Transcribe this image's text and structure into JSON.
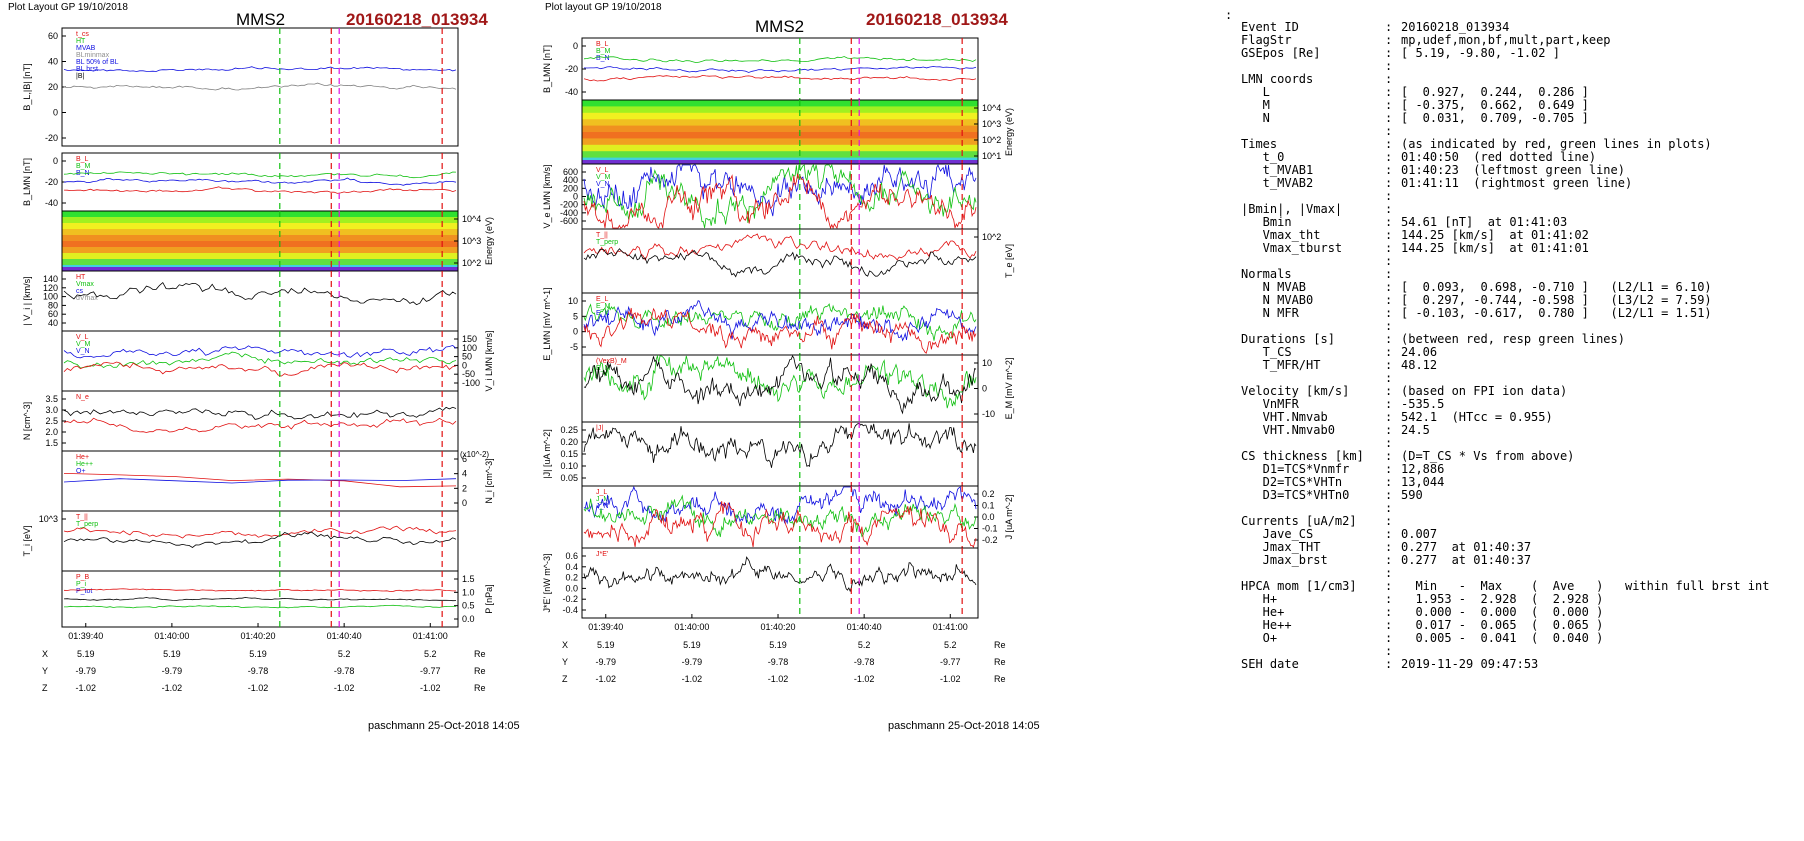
{
  "header": {
    "left_label": "Plot Layout GP 19/10/2018",
    "mid_label": "Plot layout GP 19/10/2018",
    "probe": "MMS2",
    "event": "20160218_013934"
  },
  "footer": {
    "author": "paschmann 25-Oct-2018 14:05"
  },
  "colors": {
    "event_title": "#a01818",
    "red": "#e01010",
    "green": "#10c010",
    "blue": "#1010e0",
    "magenta": "#e010e0",
    "black": "#000000"
  },
  "chart_data": [
    {
      "type": "line",
      "panel": "left",
      "time_ticks": [
        "01:39:40",
        "01:40:00",
        "01:40:20",
        "01:40:40",
        "01:41:00"
      ],
      "ephemeris": {
        "rows": [
          {
            "label": "X",
            "values": [
              "5.19",
              "5.19",
              "5.19",
              "5.2",
              "5.2"
            ],
            "unit": "Re"
          },
          {
            "label": "Y",
            "values": [
              "-9.79",
              "-9.79",
              "-9.78",
              "-9.78",
              "-9.77"
            ],
            "unit": "Re"
          },
          {
            "label": "Z",
            "values": [
              "-1.02",
              "-1.02",
              "-1.02",
              "-1.02",
              "-1.02"
            ],
            "unit": "Re"
          }
        ]
      },
      "panels": [
        {
          "id": "BL",
          "ylabel": "B_L,|B| [nT]",
          "ticks": [
            "60",
            "40",
            "20",
            "0",
            "-20"
          ],
          "legend": [
            "t_cs",
            "HT",
            "MVAB",
            "BLminmax",
            "BL 50% of BL",
            "BL brst",
            "|B|"
          ]
        },
        {
          "id": "BLMN",
          "ylabel": "B_LMN [nT]",
          "ticks": [
            "0",
            "-20",
            "-40"
          ],
          "legend": [
            "B_L",
            "B_M",
            "B_N"
          ]
        },
        {
          "id": "spec",
          "ylabel_right": "Energy (eV)",
          "ticks_right": [
            "10^4",
            "10^3",
            "10^2"
          ]
        },
        {
          "id": "Vi",
          "ylabel": "| V_i | [km/s]",
          "ticks": [
            "140",
            "120",
            "100",
            "80",
            "60",
            "40"
          ],
          "legend": [
            "HT",
            "Vmax",
            "cs",
            "dVmax"
          ]
        },
        {
          "id": "ViLMN",
          "ylabel_right": "V_i LMN [km/s]",
          "ticks_right": [
            "150",
            "100",
            "50",
            "0",
            "-50",
            "-100"
          ],
          "legend": [
            "V_L",
            "V_M",
            "V_N"
          ]
        },
        {
          "id": "N",
          "ylabel": "N [cm^-3]",
          "ticks": [
            "3.5",
            "3.0",
            "2.5",
            "2.0",
            "1.5"
          ],
          "legend": [
            "N_e"
          ]
        },
        {
          "id": "Ni",
          "ylabel_right": "N_i [cm^-3]",
          "ticks_right": [
            "6",
            "4",
            "2",
            "0"
          ],
          "legend": [
            "He+",
            "He++",
            "O+"
          ],
          "scale_note": "(x10^-2)"
        },
        {
          "id": "Ti",
          "ylabel": "T_i [eV]",
          "ticks": [
            "10^3"
          ],
          "legend": [
            "T_||",
            "T_perp"
          ]
        },
        {
          "id": "P",
          "ylabel_right": "P [nPa]",
          "ticks_right": [
            "1.5",
            "1.0",
            "0.5",
            "0.0"
          ],
          "legend": [
            "P_B",
            "P_i",
            "P_tot"
          ]
        }
      ]
    },
    {
      "type": "line",
      "panel": "middle",
      "time_ticks": [
        "01:39:40",
        "01:40:00",
        "01:40:20",
        "01:40:40",
        "01:41:00"
      ],
      "ephemeris": {
        "rows": [
          {
            "label": "X",
            "values": [
              "5.19",
              "5.19",
              "5.19",
              "5.2",
              "5.2"
            ],
            "unit": "Re"
          },
          {
            "label": "Y",
            "values": [
              "-9.79",
              "-9.79",
              "-9.78",
              "-9.78",
              "-9.77"
            ],
            "unit": "Re"
          },
          {
            "label": "Z",
            "values": [
              "-1.02",
              "-1.02",
              "-1.02",
              "-1.02",
              "-1.02"
            ],
            "unit": "Re"
          }
        ]
      },
      "panels": [
        {
          "id": "BLMN",
          "ylabel": "B_LMN [nT]",
          "ticks": [
            "0",
            "-20",
            "-40"
          ],
          "legend": [
            "B_L",
            "B_M",
            "B_N"
          ]
        },
        {
          "id": "spec",
          "ylabel_right": "Energy (eV)",
          "ticks_right": [
            "10^4",
            "10^3",
            "10^2",
            "10^1"
          ]
        },
        {
          "id": "VeLMN",
          "ylabel": "V_e LMN [km/s]",
          "ticks": [
            "600",
            "400",
            "200",
            "0",
            "-200",
            "-400",
            "-600"
          ],
          "legend": [
            "V_L",
            "V_M",
            "V_N"
          ]
        },
        {
          "id": "Te",
          "ylabel_right": "T_e [eV]",
          "ticks_right": [
            "10^2"
          ],
          "legend": [
            "T_||",
            "T_perp"
          ]
        },
        {
          "id": "ELMN",
          "ylabel": "E_LMN [mV m^-1]",
          "ticks": [
            "10",
            "5",
            "0",
            "-5"
          ],
          "legend": [
            "E_L",
            "E_M",
            "E_N"
          ]
        },
        {
          "id": "EM",
          "ylabel_right": "E_M [mV m^-2]",
          "ticks_right": [
            "10",
            "0",
            "-10"
          ],
          "legend": [
            "(VexB)_M",
            "E_M"
          ]
        },
        {
          "id": "J",
          "ylabel": "|J| [uA m^-2]",
          "ticks": [
            "0.25",
            "0.20",
            "0.15",
            "0.10",
            "0.05"
          ],
          "legend": [
            "|J|"
          ]
        },
        {
          "id": "JLMN",
          "ylabel_right": "J [uA m^-2]",
          "ticks_right": [
            "0.2",
            "0.1",
            "0.0",
            "-0.1",
            "-0.2"
          ],
          "legend": [
            "J_L",
            "J_M",
            "J_N"
          ]
        },
        {
          "id": "JE",
          "ylabel": "J*E' [nW m^-3]",
          "ticks": [
            "0.6",
            "0.4",
            "0.2",
            "0.0",
            "-0.2",
            "-0.4"
          ],
          "legend": [
            "J*E'"
          ]
        }
      ]
    }
  ],
  "info": [
    {
      "label": "Event ID",
      "value": "20160218_013934"
    },
    {
      "label": "FlagStr",
      "value": "mp,udef,mon,bf,mult,part,keep"
    },
    {
      "label": "GSEpos [Re]",
      "value": "[ 5.19, -9.80, -1.02 ]"
    },
    {
      "label": "",
      "value": ""
    },
    {
      "label": "LMN coords",
      "value": ""
    },
    {
      "label": "   L",
      "value": "[  0.927,  0.244,  0.286 ]"
    },
    {
      "label": "   M",
      "value": "[ -0.375,  0.662,  0.649 ]"
    },
    {
      "label": "   N",
      "value": "[  0.031,  0.709, -0.705 ]"
    },
    {
      "label": "",
      "value": ""
    },
    {
      "label": "Times",
      "value": "(as indicated by red, green lines in plots)"
    },
    {
      "label": "   t_0",
      "value": "01:40:50  (red dotted line)"
    },
    {
      "label": "   t_MVAB1",
      "value": "01:40:23  (leftmost green line)"
    },
    {
      "label": "   t_MVAB2",
      "value": "01:41:11  (rightmost green line)"
    },
    {
      "label": "",
      "value": ""
    },
    {
      "label": "|Bmin|, |Vmax|",
      "value": ""
    },
    {
      "label": "   Bmin",
      "value": "54.61 [nT]  at 01:41:03"
    },
    {
      "label": "   Vmax_tht",
      "value": "144.25 [km/s]  at 01:41:02"
    },
    {
      "label": "   Vmax_tburst",
      "value": "144.25 [km/s]  at 01:41:01"
    },
    {
      "label": "",
      "value": ""
    },
    {
      "label": "Normals",
      "value": ""
    },
    {
      "label": "   N MVAB",
      "value": "[  0.093,  0.698, -0.710 ]   (L2/L1 = 6.10)"
    },
    {
      "label": "   N MVAB0",
      "value": "[  0.297, -0.744, -0.598 ]   (L3/L2 = 7.59)"
    },
    {
      "label": "   N MFR",
      "value": "[ -0.103, -0.617,  0.780 ]   (L2/L1 = 1.51)"
    },
    {
      "label": "",
      "value": ""
    },
    {
      "label": "Durations [s]",
      "value": "(between red, resp green lines)"
    },
    {
      "label": "   T_CS",
      "value": "24.06"
    },
    {
      "label": "   T_MFR/HT",
      "value": "48.12"
    },
    {
      "label": "",
      "value": ""
    },
    {
      "label": "Velocity [km/s]",
      "value": "(based on FPI ion data)"
    },
    {
      "label": "   VnMFR",
      "value": "-535.5"
    },
    {
      "label": "   VHT.Nmvab",
      "value": "542.1  (HTcc = 0.955)"
    },
    {
      "label": "   VHT.Nmvab0",
      "value": "24.5"
    },
    {
      "label": "",
      "value": ""
    },
    {
      "label": "CS thickness [km]",
      "value": "(D=T_CS * Vs from above)"
    },
    {
      "label": "   D1=TCS*Vnmfr",
      "value": "12,886"
    },
    {
      "label": "   D2=TCS*VHTn",
      "value": "13,044"
    },
    {
      "label": "   D3=TCS*VHTn0",
      "value": "590"
    },
    {
      "label": "",
      "value": ""
    },
    {
      "label": "Currents [uA/m2]",
      "value": ""
    },
    {
      "label": "   Jave_CS",
      "value": "0.007"
    },
    {
      "label": "   Jmax_THT",
      "value": "0.277  at 01:40:37"
    },
    {
      "label": "   Jmax_brst",
      "value": "0.277  at 01:40:37"
    },
    {
      "label": "",
      "value": ""
    },
    {
      "label": "HPCA mom [1/cm3]",
      "value": "  Min   -  Max    (  Ave   )   within full brst int"
    },
    {
      "label": "   H+",
      "value": "  1.953 -  2.928  (  2.928 )"
    },
    {
      "label": "   He+",
      "value": "  0.000 -  0.000  (  0.000 )"
    },
    {
      "label": "   He++",
      "value": "  0.017 -  0.065  (  0.065 )"
    },
    {
      "label": "   O+",
      "value": "  0.005 -  0.041  (  0.040 )"
    },
    {
      "label": "",
      "value": ""
    },
    {
      "label": "SEH date",
      "value": "2019-11-29 09:47:53"
    }
  ]
}
